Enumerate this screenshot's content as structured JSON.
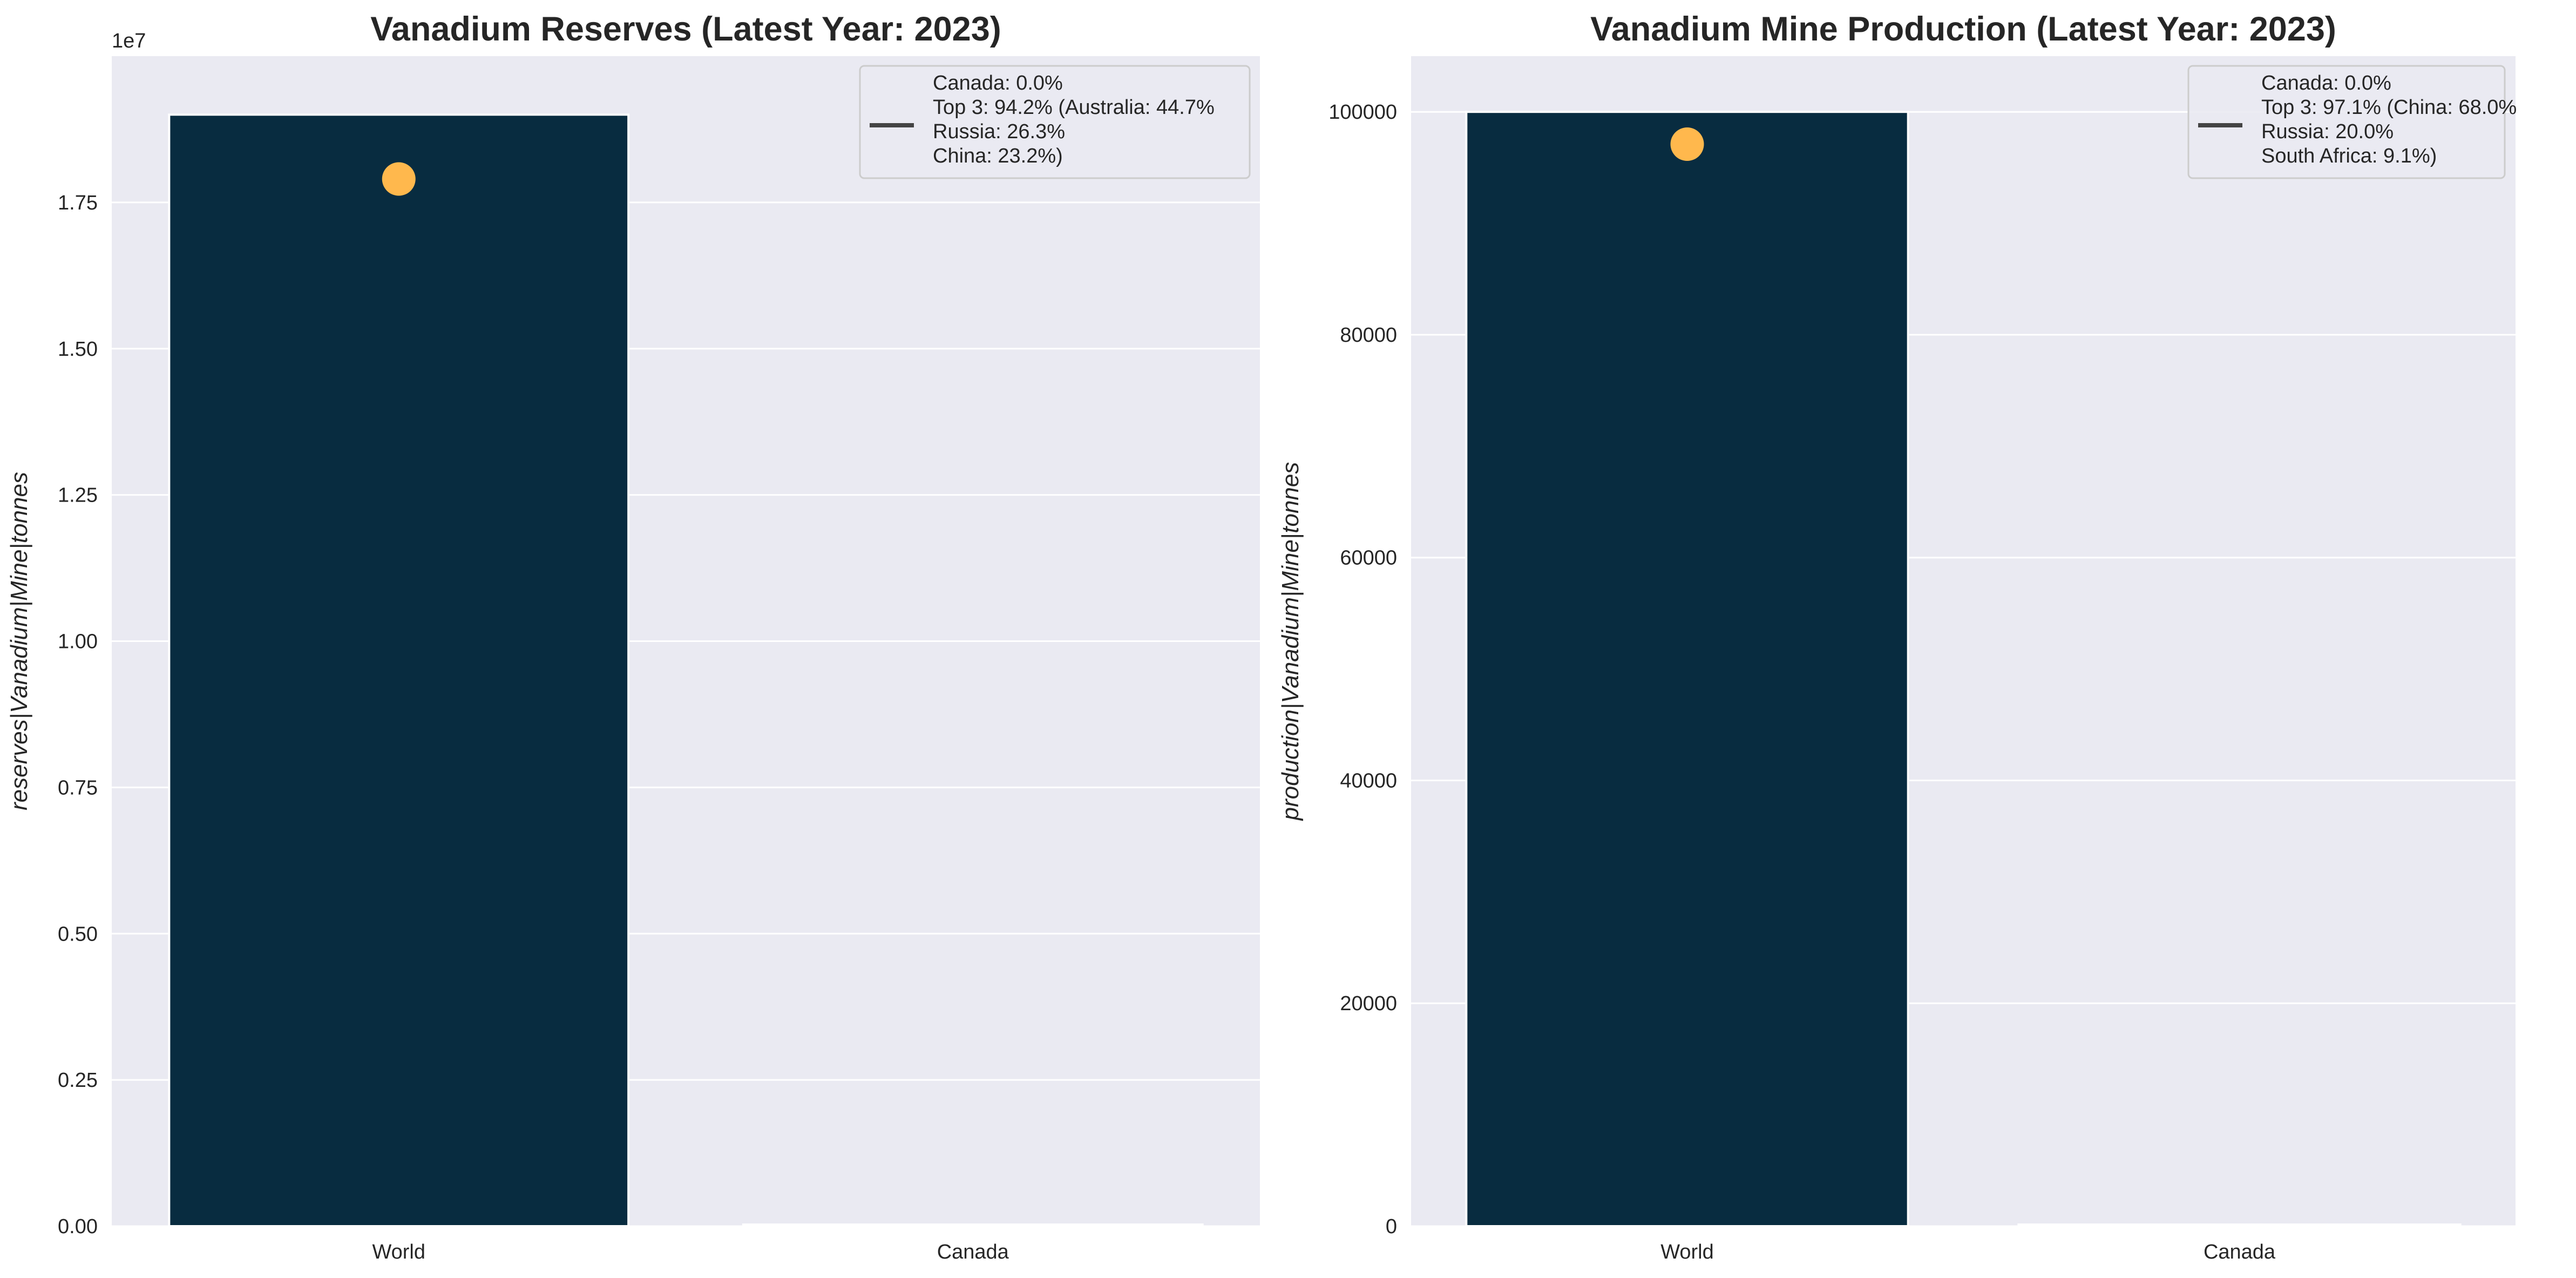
{
  "colors": {
    "plot_bg": "#eaeaf2",
    "grid": "#ffffff",
    "bar": "#082c40",
    "marker": "#ffb84d",
    "legend_line": "#444444",
    "text": "#262626"
  },
  "chart_data": [
    {
      "type": "bar",
      "title": "Vanadium Reserves (Latest Year: 2023)",
      "ylabel": "reserves|Vanadium|Mine|tonnes",
      "xlabel": "",
      "categories": [
        "World",
        "Canada"
      ],
      "values": [
        19000000,
        0
      ],
      "marker": {
        "category": "World",
        "value": 17900000
      },
      "ylim": [
        0,
        20000000
      ],
      "yticks": [
        0,
        2500000,
        5000000,
        7500000,
        10000000,
        12500000,
        15000000,
        17500000
      ],
      "ytick_labels": [
        "0.00",
        "0.25",
        "0.50",
        "0.75",
        "1.00",
        "1.25",
        "1.50",
        "1.75"
      ],
      "offset_label": "1e7",
      "grid": true,
      "legend_position": "top-right",
      "legend_lines": [
        "Canada: 0.0%",
        "Top 3: 94.2% (Australia: 44.7%",
        "Russia: 26.3%",
        "China: 23.2%)"
      ]
    },
    {
      "type": "bar",
      "title": "Vanadium Mine Production (Latest Year: 2023)",
      "ylabel": "production|Vanadium|Mine|tonnes",
      "xlabel": "",
      "categories": [
        "World",
        "Canada"
      ],
      "values": [
        100000,
        0
      ],
      "marker": {
        "category": "World",
        "value": 97100
      },
      "ylim": [
        0,
        105000
      ],
      "yticks": [
        0,
        20000,
        40000,
        60000,
        80000,
        100000
      ],
      "ytick_labels": [
        "0",
        "20000",
        "40000",
        "60000",
        "80000",
        "100000"
      ],
      "offset_label": "",
      "grid": true,
      "legend_position": "top-right",
      "legend_lines": [
        "Canada: 0.0%",
        "Top 3: 97.1% (China: 68.0%",
        "Russia: 20.0%",
        "South Africa: 9.1%)"
      ]
    }
  ]
}
